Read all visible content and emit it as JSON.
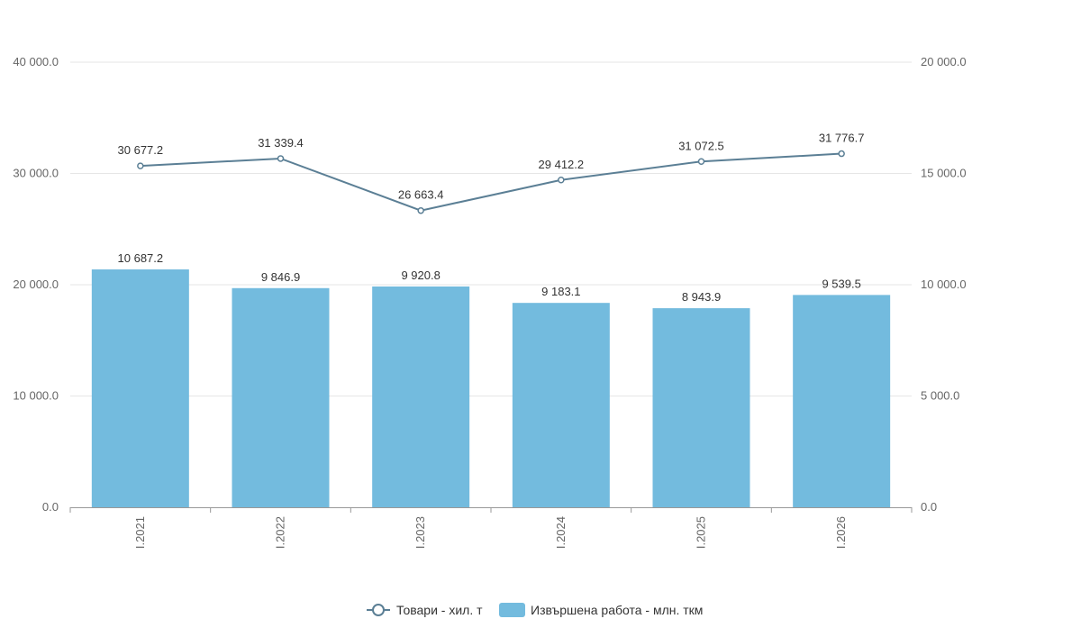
{
  "chart_data": {
    "type": "bar+line",
    "categories": [
      "I.2021",
      "I.2022",
      "I.2023",
      "I.2024",
      "I.2025",
      "I.2026"
    ],
    "series": [
      {
        "name": "Товари - хил. т",
        "kind": "line",
        "axis": "left",
        "values": [
          30677.2,
          31339.4,
          26663.4,
          29412.2,
          31072.5,
          31776.7
        ],
        "labels": [
          "30 677.2",
          "31 339.4",
          "26 663.4",
          "29 412.2",
          "31 072.5",
          "31 776.7"
        ]
      },
      {
        "name": "Извършена работа - млн. ткм",
        "kind": "bar",
        "axis": "right",
        "values": [
          10687.2,
          9846.9,
          9920.8,
          9183.1,
          8943.9,
          9539.5
        ],
        "labels": [
          "10 687.2",
          "9 846.9",
          "9 920.8",
          "9 183.1",
          "8 943.9",
          "9 539.5"
        ]
      }
    ],
    "left_axis": {
      "ylim": [
        0,
        40000
      ],
      "ticks": [
        0,
        10000,
        20000,
        30000,
        40000
      ],
      "tick_labels": [
        "0.0",
        "10 000.0",
        "20 000.0",
        "30 000.0",
        "40 000.0"
      ]
    },
    "right_axis": {
      "ylim": [
        0,
        20000
      ],
      "ticks": [
        0,
        5000,
        10000,
        15000,
        20000
      ],
      "tick_labels": [
        "0.0",
        "5 000.0",
        "10 000.0",
        "15 000.0",
        "20 000.0"
      ]
    },
    "grid": true,
    "legend_position": "bottom-center",
    "colors": {
      "line": "#5b7f95",
      "bar": "#73bbde",
      "grid": "#e6e6e6",
      "axis": "#999999"
    }
  }
}
